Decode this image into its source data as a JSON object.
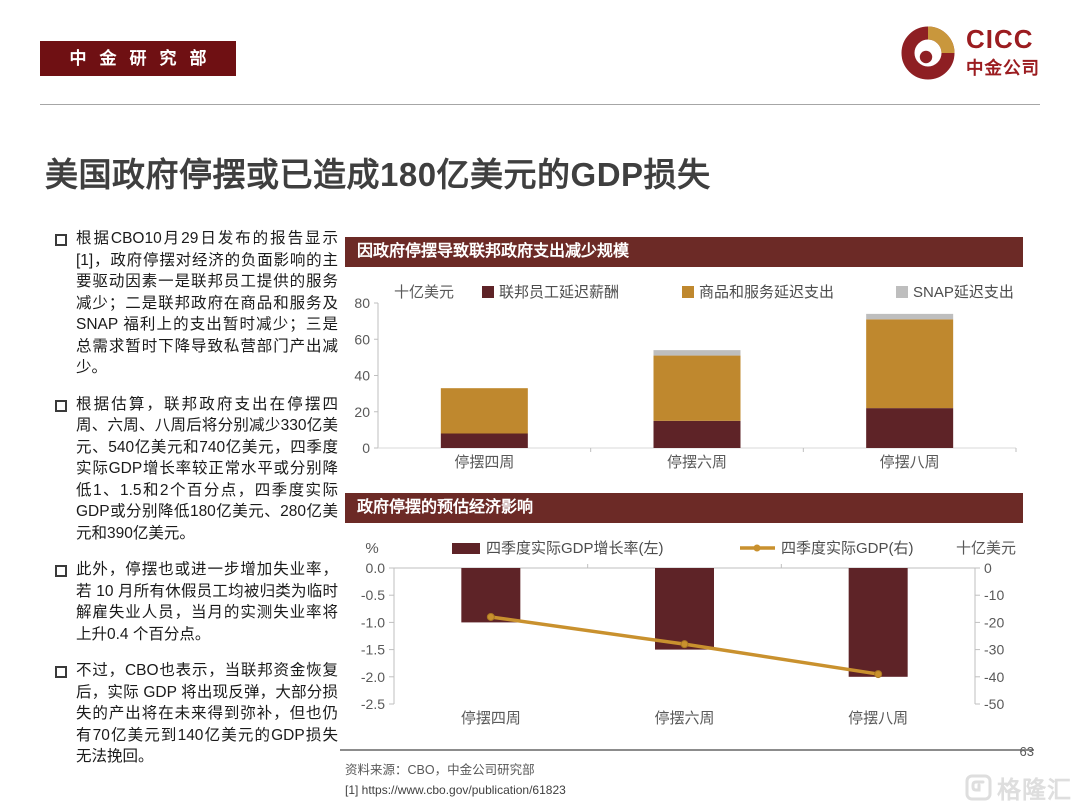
{
  "header": {
    "badge": "中金研究部",
    "logo_en": "CICC",
    "logo_cn": "中金公司"
  },
  "title": "美国政府停摆或已造成180亿美元的GDP损失",
  "bullets": [
    "根据CBO10月29日发布的报告显示[1]，政府停摆对经济的负面影响的主要驱动因素一是联邦员工提供的服务减少；二是联邦政府在商品和服务及SNAP 福利上的支出暂时减少；三是总需求暂时下降导致私营部门产出减少。",
    "根据估算，联邦政府支出在停摆四周、六周、八周后将分别减少330亿美元、540亿美元和740亿美元，四季度实际GDP增长率较正常水平或分别降低1、1.5和2个百分点，四季度实际GDP或分别降低180亿美元、280亿美元和390亿美元。",
    "此外，停摆也或进一步增加失业率，若 10 月所有休假员工均被归类为临时解雇失业人员，当月的实测失业率将上升0.4 个百分点。",
    "不过，CBO也表示，当联邦资金恢复后，实际 GDP 将出现反弹，大部分损失的产出将在未来得到弥补，但也仍有70亿美元到140亿美元的GDP损失无法挽回。"
  ],
  "chart_data": [
    {
      "type": "bar",
      "subtype": "stacked",
      "title": "因政府停摆导致联邦政府支出减少规模",
      "unit_label": "十亿美元",
      "categories": [
        "停摆四周",
        "停摆六周",
        "停摆八周"
      ],
      "series": [
        {
          "name": "联邦员工延迟薪酬",
          "color": "#5E2327",
          "values": [
            8,
            15,
            22
          ]
        },
        {
          "name": "商品和服务延迟支出",
          "color": "#BF882E",
          "values": [
            25,
            36,
            49
          ]
        },
        {
          "name": "SNAP延迟支出",
          "color": "#BEBEBE",
          "values": [
            0,
            3,
            3
          ]
        }
      ],
      "ylim": [
        0,
        80
      ],
      "yticks": [
        "0",
        "20",
        "40",
        "60",
        "80"
      ],
      "legend_position": "top",
      "grid": false
    },
    {
      "type": "bar",
      "subtype": "bar_line_combo",
      "title": "政府停摆的预估经济影响",
      "left_unit": "%",
      "right_unit": "十亿美元",
      "categories": [
        "停摆四周",
        "停摆六周",
        "停摆八周"
      ],
      "bar_series": {
        "name": "四季度实际GDP增长率(左)",
        "color": "#5E2327",
        "values": [
          -1.0,
          -1.5,
          -2.0
        ],
        "axis": "left"
      },
      "line_series": {
        "name": "四季度实际GDP(右)",
        "color": "#C9912E",
        "values": [
          -18,
          -28,
          -39
        ],
        "axis": "right"
      },
      "left_ylim": [
        -2.5,
        0
      ],
      "left_yticks": [
        "0.0",
        "-0.5",
        "-1.0",
        "-1.5",
        "-2.0",
        "-2.5"
      ],
      "right_ylim": [
        -50,
        0
      ],
      "right_yticks": [
        "0",
        "-10",
        "-20",
        "-30",
        "-40",
        "-50"
      ],
      "legend_position": "top",
      "grid": false
    }
  ],
  "footer": {
    "source": "资料来源：CBO，中金公司研究部",
    "reference": "[1] https://www.cbo.gov/publication/61823",
    "page_number": "63"
  },
  "watermark": "格隆汇",
  "colors": {
    "brand_red": "#6F1013",
    "logo_red": "#9B1C20",
    "logo_gold": "#C9973C",
    "panel_maroon": "#6C2A26",
    "bar_dark_red": "#5E2327",
    "bar_gold": "#BF882E",
    "bar_gray": "#BEBEBE",
    "line_gold": "#C9912E",
    "axis_text": "#595959"
  }
}
